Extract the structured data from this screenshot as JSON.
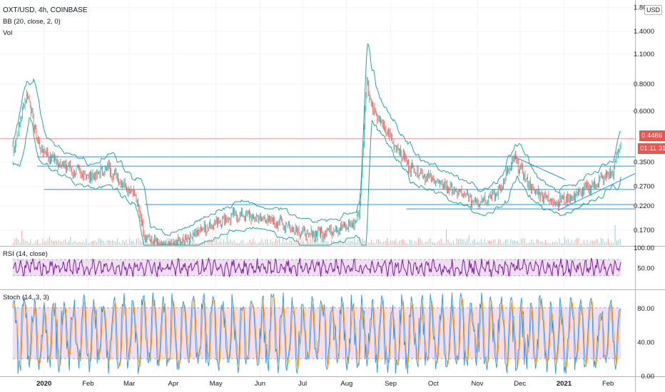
{
  "header": {
    "symbol": "OXT/USD, 4h, COINBASE",
    "bb": "BB (20, close, 2, 0)",
    "vol": "Vol",
    "rsi": "RSI (14, close)",
    "stoch": "Stoch (14, 3, 3)"
  },
  "price_scale": {
    "currency": "USD",
    "current_price": "0.4486",
    "countdown": "01:11:31"
  },
  "colors": {
    "candle": "#ef5350",
    "bands": "#26a69a",
    "hlines": "#2196f3",
    "price_line": "#ef5350",
    "rsi": "#7b1fa2",
    "stoch_k": "#2196f3",
    "stoch_d": "#ff9800",
    "band_fill": "#e1bee7"
  },
  "chart_data": [
    {
      "type": "line",
      "panel": "price",
      "title": "OXT/USD, 4h, COINBASE",
      "scale": "log",
      "y_ticks": [
        "1.8000",
        "1.4000",
        "1.1000",
        "0.8000",
        "0.6000",
        "0.4486",
        "0.3500",
        "0.2700",
        "0.2200",
        "0.1700"
      ],
      "y_tick_values": [
        1.8,
        1.4,
        1.1,
        0.8,
        0.6,
        0.35,
        0.27,
        0.22,
        0.17
      ],
      "x_tick_labels": [
        "2020",
        "Feb",
        "Mar",
        "Apr",
        "May",
        "Jun",
        "Jul",
        "Aug",
        "Sep",
        "Oct",
        "Nov",
        "Dec",
        "2021",
        "Feb"
      ],
      "x": [
        "2019-12-10",
        "2019-12-20",
        "2019-12-24",
        "2019-12-28",
        "2020-01-05",
        "2020-01-15",
        "2020-01-25",
        "2020-02-05",
        "2020-02-15",
        "2020-02-25",
        "2020-03-05",
        "2020-03-12",
        "2020-03-25",
        "2020-04-05",
        "2020-04-20",
        "2020-05-05",
        "2020-05-20",
        "2020-06-05",
        "2020-06-20",
        "2020-07-05",
        "2020-07-20",
        "2020-08-05",
        "2020-08-10",
        "2020-08-15",
        "2020-08-20",
        "2020-09-01",
        "2020-09-15",
        "2020-10-01",
        "2020-10-15",
        "2020-11-01",
        "2020-11-15",
        "2020-11-27",
        "2020-12-10",
        "2020-12-25",
        "2021-01-05",
        "2021-01-20",
        "2021-02-05",
        "2021-02-10"
      ],
      "series": [
        {
          "name": "OXT/USD",
          "values": [
            0.38,
            0.74,
            0.56,
            0.42,
            0.37,
            0.34,
            0.31,
            0.3,
            0.33,
            0.28,
            0.25,
            0.16,
            0.14,
            0.15,
            0.17,
            0.19,
            0.2,
            0.19,
            0.18,
            0.16,
            0.17,
            0.18,
            0.2,
            0.83,
            0.6,
            0.45,
            0.33,
            0.29,
            0.26,
            0.23,
            0.25,
            0.36,
            0.26,
            0.23,
            0.24,
            0.27,
            0.32,
            0.4486
          ]
        }
      ],
      "horizontal_levels": [
        0.37,
        0.335,
        0.262,
        0.223,
        0.213
      ]
    },
    {
      "type": "line",
      "panel": "rsi",
      "title": "RSI (14, close)",
      "y_ticks": [
        "100.00",
        "50.00"
      ],
      "ylim": [
        0,
        100
      ],
      "band": [
        30,
        70
      ]
    },
    {
      "type": "line",
      "panel": "stoch",
      "title": "Stoch (14, 3, 3)",
      "y_ticks": [
        "80.00",
        "40.00",
        "0.00"
      ],
      "ylim": [
        0,
        100
      ],
      "band": [
        20,
        80
      ]
    }
  ]
}
